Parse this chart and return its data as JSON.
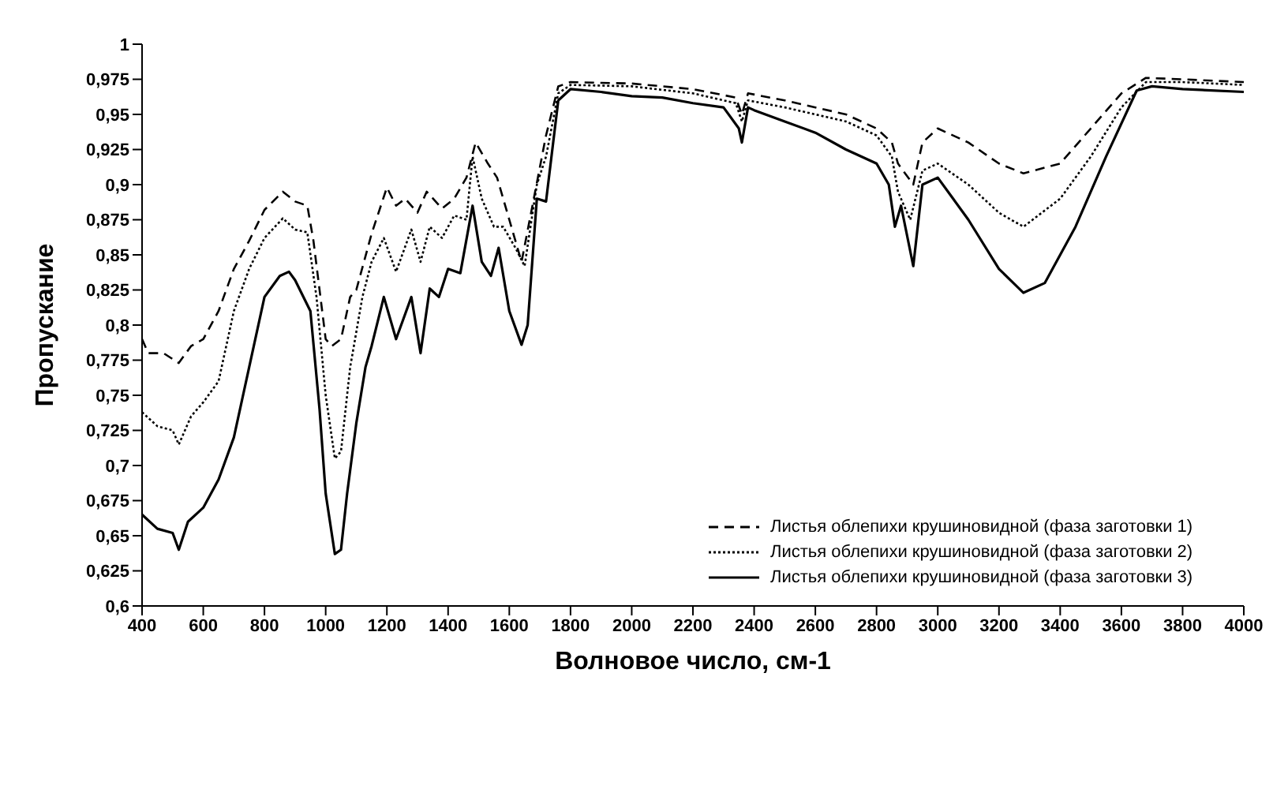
{
  "chart_data": {
    "type": "line",
    "xlabel": "Волновое число, см-1",
    "ylabel": "Пропускание",
    "xlim": [
      400,
      4000
    ],
    "xticks": [
      400,
      600,
      800,
      1000,
      1200,
      1400,
      1600,
      1800,
      2000,
      2200,
      2400,
      2600,
      2800,
      3000,
      3200,
      3400,
      3600,
      3800,
      4000
    ],
    "ylim": [
      0.6,
      1
    ],
    "yticks": [
      {
        "value": 0.6,
        "label": "0,6"
      },
      {
        "value": 0.625,
        "label": "0,625"
      },
      {
        "value": 0.65,
        "label": "0,65"
      },
      {
        "value": 0.675,
        "label": "0,675"
      },
      {
        "value": 0.7,
        "label": "0,7"
      },
      {
        "value": 0.725,
        "label": "0,725"
      },
      {
        "value": 0.75,
        "label": "0,75"
      },
      {
        "value": 0.775,
        "label": "0,775"
      },
      {
        "value": 0.8,
        "label": "0,8"
      },
      {
        "value": 0.825,
        "label": "0,825"
      },
      {
        "value": 0.85,
        "label": "0,85"
      },
      {
        "value": 0.875,
        "label": "0,875"
      },
      {
        "value": 0.9,
        "label": "0,9"
      },
      {
        "value": 0.925,
        "label": "0,925"
      },
      {
        "value": 0.95,
        "label": "0,95"
      },
      {
        "value": 0.975,
        "label": "0,975"
      },
      {
        "value": 1,
        "label": "1"
      }
    ],
    "grid": false,
    "legend": "bottom right",
    "marker": "none",
    "series": [
      {
        "name": "Листья облепихи крушиновидной (фаза заготовки 1)",
        "color": "#000000",
        "line_style": "dashed",
        "x": [
          400,
          420,
          470,
          520,
          560,
          600,
          650,
          700,
          750,
          800,
          860,
          900,
          940,
          960,
          1000,
          1020,
          1050,
          1080,
          1100,
          1150,
          1200,
          1230,
          1260,
          1300,
          1330,
          1380,
          1420,
          1460,
          1490,
          1530,
          1560,
          1600,
          1640,
          1680,
          1720,
          1760,
          1800,
          2000,
          2200,
          2340,
          2360,
          2380,
          2500,
          2700,
          2800,
          2850,
          2870,
          2920,
          2950,
          3000,
          3100,
          3200,
          3280,
          3400,
          3500,
          3600,
          3680,
          3800,
          4000
        ],
        "values": [
          0.79,
          0.78,
          0.78,
          0.773,
          0.785,
          0.79,
          0.81,
          0.84,
          0.86,
          0.882,
          0.895,
          0.888,
          0.885,
          0.86,
          0.79,
          0.785,
          0.79,
          0.82,
          0.825,
          0.865,
          0.898,
          0.885,
          0.89,
          0.88,
          0.895,
          0.883,
          0.89,
          0.905,
          0.93,
          0.915,
          0.905,
          0.875,
          0.845,
          0.89,
          0.935,
          0.97,
          0.973,
          0.972,
          0.968,
          0.962,
          0.95,
          0.965,
          0.96,
          0.95,
          0.94,
          0.93,
          0.915,
          0.9,
          0.93,
          0.94,
          0.93,
          0.915,
          0.908,
          0.915,
          0.94,
          0.965,
          0.976,
          0.975,
          0.973
        ]
      },
      {
        "name": "Листья облепихи крушиновидной (фаза заготовки 2)",
        "color": "#000000",
        "line_style": "dotted",
        "x": [
          400,
          450,
          500,
          520,
          560,
          600,
          650,
          700,
          750,
          800,
          860,
          900,
          940,
          970,
          1000,
          1030,
          1050,
          1080,
          1120,
          1150,
          1190,
          1230,
          1280,
          1310,
          1340,
          1380,
          1420,
          1460,
          1480,
          1510,
          1550,
          1580,
          1620,
          1650,
          1690,
          1720,
          1760,
          1800,
          2000,
          2200,
          2340,
          2360,
          2380,
          2500,
          2700,
          2800,
          2850,
          2870,
          2910,
          2950,
          3000,
          3100,
          3200,
          3280,
          3400,
          3500,
          3600,
          3680,
          3800,
          4000
        ],
        "values": [
          0.738,
          0.728,
          0.725,
          0.715,
          0.735,
          0.745,
          0.76,
          0.81,
          0.84,
          0.862,
          0.876,
          0.868,
          0.866,
          0.82,
          0.75,
          0.705,
          0.71,
          0.77,
          0.82,
          0.845,
          0.862,
          0.838,
          0.868,
          0.845,
          0.87,
          0.862,
          0.878,
          0.875,
          0.92,
          0.89,
          0.87,
          0.87,
          0.855,
          0.842,
          0.9,
          0.92,
          0.965,
          0.971,
          0.97,
          0.965,
          0.958,
          0.945,
          0.96,
          0.955,
          0.945,
          0.935,
          0.92,
          0.895,
          0.875,
          0.91,
          0.915,
          0.9,
          0.88,
          0.87,
          0.89,
          0.92,
          0.955,
          0.973,
          0.973,
          0.971
        ]
      },
      {
        "name": "Листья облепихи крушиновидной (фаза заготовки 3)",
        "color": "#000000",
        "line_style": "solid",
        "x": [
          400,
          450,
          500,
          520,
          550,
          600,
          650,
          700,
          750,
          800,
          850,
          880,
          900,
          950,
          980,
          1000,
          1030,
          1050,
          1070,
          1100,
          1130,
          1150,
          1190,
          1230,
          1280,
          1310,
          1340,
          1370,
          1400,
          1440,
          1480,
          1510,
          1540,
          1565,
          1600,
          1640,
          1660,
          1690,
          1720,
          1760,
          1800,
          1900,
          2000,
          2100,
          2200,
          2300,
          2350,
          2360,
          2380,
          2400,
          2500,
          2600,
          2700,
          2800,
          2840,
          2860,
          2880,
          2920,
          2950,
          3000,
          3050,
          3100,
          3200,
          3280,
          3350,
          3450,
          3550,
          3650,
          3700,
          3800,
          4000
        ],
        "values": [
          0.665,
          0.655,
          0.652,
          0.64,
          0.66,
          0.67,
          0.69,
          0.72,
          0.77,
          0.82,
          0.835,
          0.838,
          0.832,
          0.81,
          0.74,
          0.68,
          0.637,
          0.64,
          0.68,
          0.73,
          0.77,
          0.785,
          0.82,
          0.79,
          0.82,
          0.78,
          0.826,
          0.82,
          0.84,
          0.837,
          0.885,
          0.845,
          0.835,
          0.855,
          0.81,
          0.786,
          0.8,
          0.89,
          0.888,
          0.96,
          0.968,
          0.966,
          0.963,
          0.962,
          0.958,
          0.955,
          0.94,
          0.93,
          0.955,
          0.953,
          0.945,
          0.937,
          0.925,
          0.915,
          0.9,
          0.87,
          0.885,
          0.842,
          0.9,
          0.905,
          0.89,
          0.875,
          0.84,
          0.823,
          0.83,
          0.87,
          0.92,
          0.967,
          0.97,
          0.968,
          0.966
        ]
      }
    ]
  }
}
